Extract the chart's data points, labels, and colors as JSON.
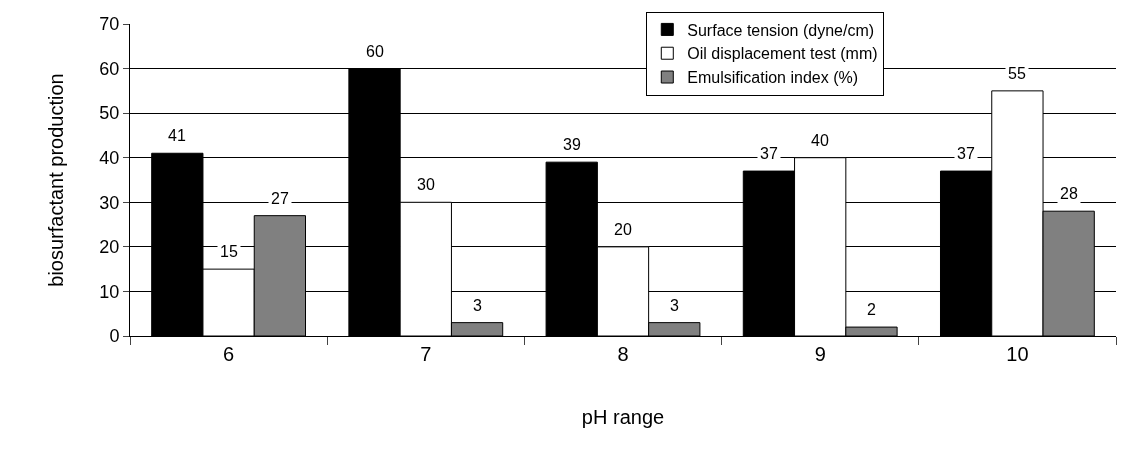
{
  "chart_data": {
    "type": "bar",
    "xlabel": "pH range",
    "ylabel": "biosurfactant production",
    "categories": [
      "6",
      "7",
      "8",
      "9",
      "10"
    ],
    "series": [
      {
        "name": "Surface tension (dyne/cm)",
        "color": "#000000",
        "values": [
          41,
          60,
          39,
          37,
          37
        ]
      },
      {
        "name": "Oil displacement test (mm)",
        "color": "#ffffff",
        "values": [
          15,
          30,
          20,
          40,
          55
        ]
      },
      {
        "name": "Emulsification index (%)",
        "color": "#808080",
        "values": [
          27,
          3,
          3,
          2,
          28
        ]
      }
    ],
    "ylim": [
      0,
      70
    ],
    "yticks": [
      0,
      10,
      20,
      30,
      40,
      50,
      60,
      70
    ],
    "grid": "y",
    "legend": "top right",
    "data_labels": true
  }
}
